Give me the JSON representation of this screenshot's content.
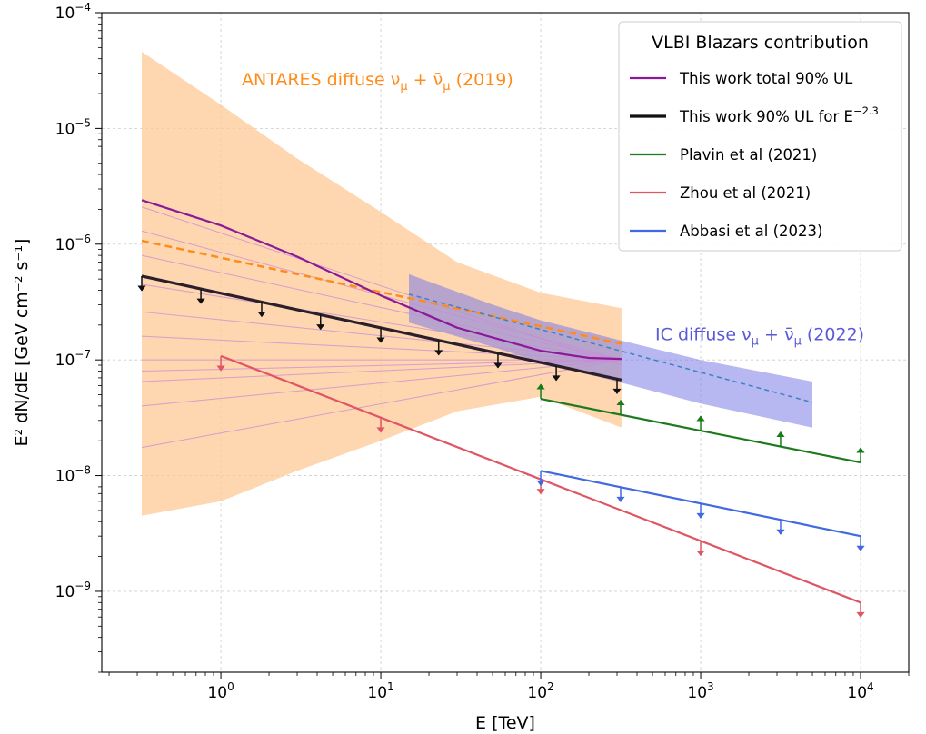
{
  "chart_data": {
    "type": "line",
    "xlabel": "E [TeV]",
    "ylabel": "E² dN/dE [GeV cm⁻² s⁻¹]",
    "xscale": "log",
    "yscale": "log",
    "xlim": [
      0.18,
      20000
    ],
    "ylim": [
      2e-10,
      0.0001
    ],
    "grid": true,
    "x_ticks": [
      {
        "value": 1,
        "base": "10",
        "exp": "0"
      },
      {
        "value": 10,
        "base": "10",
        "exp": "1"
      },
      {
        "value": 100,
        "base": "10",
        "exp": "2"
      },
      {
        "value": 1000,
        "base": "10",
        "exp": "3"
      },
      {
        "value": 10000,
        "base": "10",
        "exp": "4"
      }
    ],
    "y_ticks": [
      {
        "value": 1e-09,
        "base": "10",
        "exp": "−9"
      },
      {
        "value": 1e-08,
        "base": "10",
        "exp": "−8"
      },
      {
        "value": 1e-07,
        "base": "10",
        "exp": "−7"
      },
      {
        "value": 1e-06,
        "base": "10",
        "exp": "−6"
      },
      {
        "value": 1e-05,
        "base": "10",
        "exp": "−5"
      },
      {
        "value": 0.0001,
        "base": "10",
        "exp": "−4"
      }
    ],
    "legend": {
      "title": "VLBI Blazars contribution",
      "placement": "top-right",
      "entries": [
        {
          "label": "This work total 90% UL",
          "color": "#8B1A9B",
          "width": 2.2
        },
        {
          "label": "This work 90% UL for E",
          "sup": "−2.3",
          "color": "#111111",
          "width": 3.2
        },
        {
          "label": "Plavin et al (2021)",
          "color": "#1B7A1B",
          "width": 2.2
        },
        {
          "label": "Zhou et al (2021)",
          "color": "#E05563",
          "width": 2.2
        },
        {
          "label": "Abbasi et al (2023)",
          "color": "#4169E1",
          "width": 2.2
        }
      ]
    },
    "bands": [
      {
        "name": "ANTARES diffuse",
        "color": "#FDC895",
        "opacity": 0.75,
        "x": [
          0.32,
          1,
          3,
          10,
          30,
          100,
          320
        ],
        "upper": [
          4.6e-05,
          1.6e-05,
          5.5e-06,
          1.9e-06,
          7e-07,
          3.8e-07,
          2.8e-07
        ],
        "lower": [
          4.5e-09,
          6e-09,
          1.1e-08,
          2e-08,
          3.6e-08,
          4.8e-08,
          2.6e-08
        ]
      },
      {
        "name": "IC diffuse",
        "color": "#7B7BE6",
        "opacity": 0.55,
        "x": [
          15,
          50,
          100,
          300,
          1000,
          5000
        ],
        "upper": [
          5.5e-07,
          3e-07,
          2.2e-07,
          1.5e-07,
          1e-07,
          6.5e-08
        ],
        "lower": [
          2.1e-07,
          1.3e-07,
          9.5e-08,
          6.5e-08,
          4.2e-08,
          2.6e-08
        ]
      }
    ],
    "fan_lines": {
      "color": "#C98BD6",
      "x": [
        0.32,
        320
      ],
      "pairs": [
        [
          2.1e-06,
          9e-08
        ],
        [
          1.3e-06,
          1e-07
        ],
        [
          8e-07,
          1e-07
        ],
        [
          4.5e-07,
          1e-07
        ],
        [
          2.6e-07,
          1e-07
        ],
        [
          1.6e-07,
          1e-07
        ],
        [
          1e-07,
          1e-07
        ],
        [
          8e-08,
          1e-07
        ],
        [
          6.5e-08,
          1e-07
        ],
        [
          4e-08,
          1e-07
        ],
        [
          1.75e-08,
          1e-07
        ]
      ]
    },
    "series": [
      {
        "name": "ANTARES diffuse ν_μ + ν̄_μ (2019)",
        "color": "#FF8C1A",
        "width": 2.5,
        "dash": "8,5",
        "x": [
          0.32,
          320
        ],
        "y": [
          1.07e-06,
          1.38e-07
        ]
      },
      {
        "name": "IC diffuse ν_μ + ν̄_μ (2022)",
        "color": "#3B82C4",
        "width": 1.5,
        "dash": "5,4",
        "x": [
          15,
          5000
        ],
        "y": [
          3.7e-07,
          4.3e-08
        ]
      },
      {
        "name": "This work total 90% UL",
        "color": "#8B1A9B",
        "width": 2.2,
        "x": [
          0.32,
          1,
          3,
          10,
          30,
          100,
          200,
          320
        ],
        "y": [
          2.4e-06,
          1.45e-06,
          7.8e-07,
          3.6e-07,
          1.9e-07,
          1.2e-07,
          1.04e-07,
          1.02e-07
        ]
      },
      {
        "name": "This work 90% UL for E^-2.3",
        "color": "#2A1F2A",
        "width": 3.2,
        "x": [
          0.32,
          320
        ],
        "y": [
          5.3e-07,
          6.7e-08
        ],
        "arrows": {
          "x": [
            0.32,
            0.75,
            1.8,
            4.2,
            10,
            23,
            54,
            125,
            300
          ],
          "dir": "down",
          "color": "#111111"
        }
      },
      {
        "name": "Plavin et al (2021)",
        "color": "#1B7A1B",
        "width": 2.2,
        "x": [
          100,
          10000
        ],
        "y": [
          4.6e-08,
          1.3e-08
        ],
        "arrows": {
          "x": [
            100,
            316,
            1000,
            3160,
            10000
          ],
          "dir": "up",
          "color": "#1B7A1B"
        }
      },
      {
        "name": "Zhou et al (2021)",
        "color": "#E05563",
        "width": 2.2,
        "x": [
          1,
          10000
        ],
        "y": [
          1.08e-07,
          8e-10
        ],
        "arrows": {
          "x": [
            1,
            10,
            100,
            1000,
            10000
          ],
          "dir": "down",
          "color": "#E05563"
        }
      },
      {
        "name": "Abbasi et al (2023)",
        "color": "#4169E1",
        "width": 2.2,
        "x": [
          100,
          10000
        ],
        "y": [
          1.1e-08,
          3e-09
        ],
        "arrows": {
          "x": [
            100,
            316,
            1000,
            3160,
            10000
          ],
          "dir": "down",
          "color": "#4169E1"
        }
      }
    ],
    "annotations": [
      {
        "text": "ANTARES diffuse ν",
        "sub": "μ",
        "mid": " + ν̄",
        "sub2": "μ",
        "tail": " (2019)",
        "color": "#FF8C1A",
        "x": 1.35,
        "y": 2.35e-05
      },
      {
        "text": "IC diffuse ν",
        "sub": "μ",
        "mid": " + ν̄",
        "sub2": "μ",
        "tail": " (2022)",
        "color": "#5A5AD8",
        "x": 520,
        "y": 1.48e-07
      }
    ]
  }
}
